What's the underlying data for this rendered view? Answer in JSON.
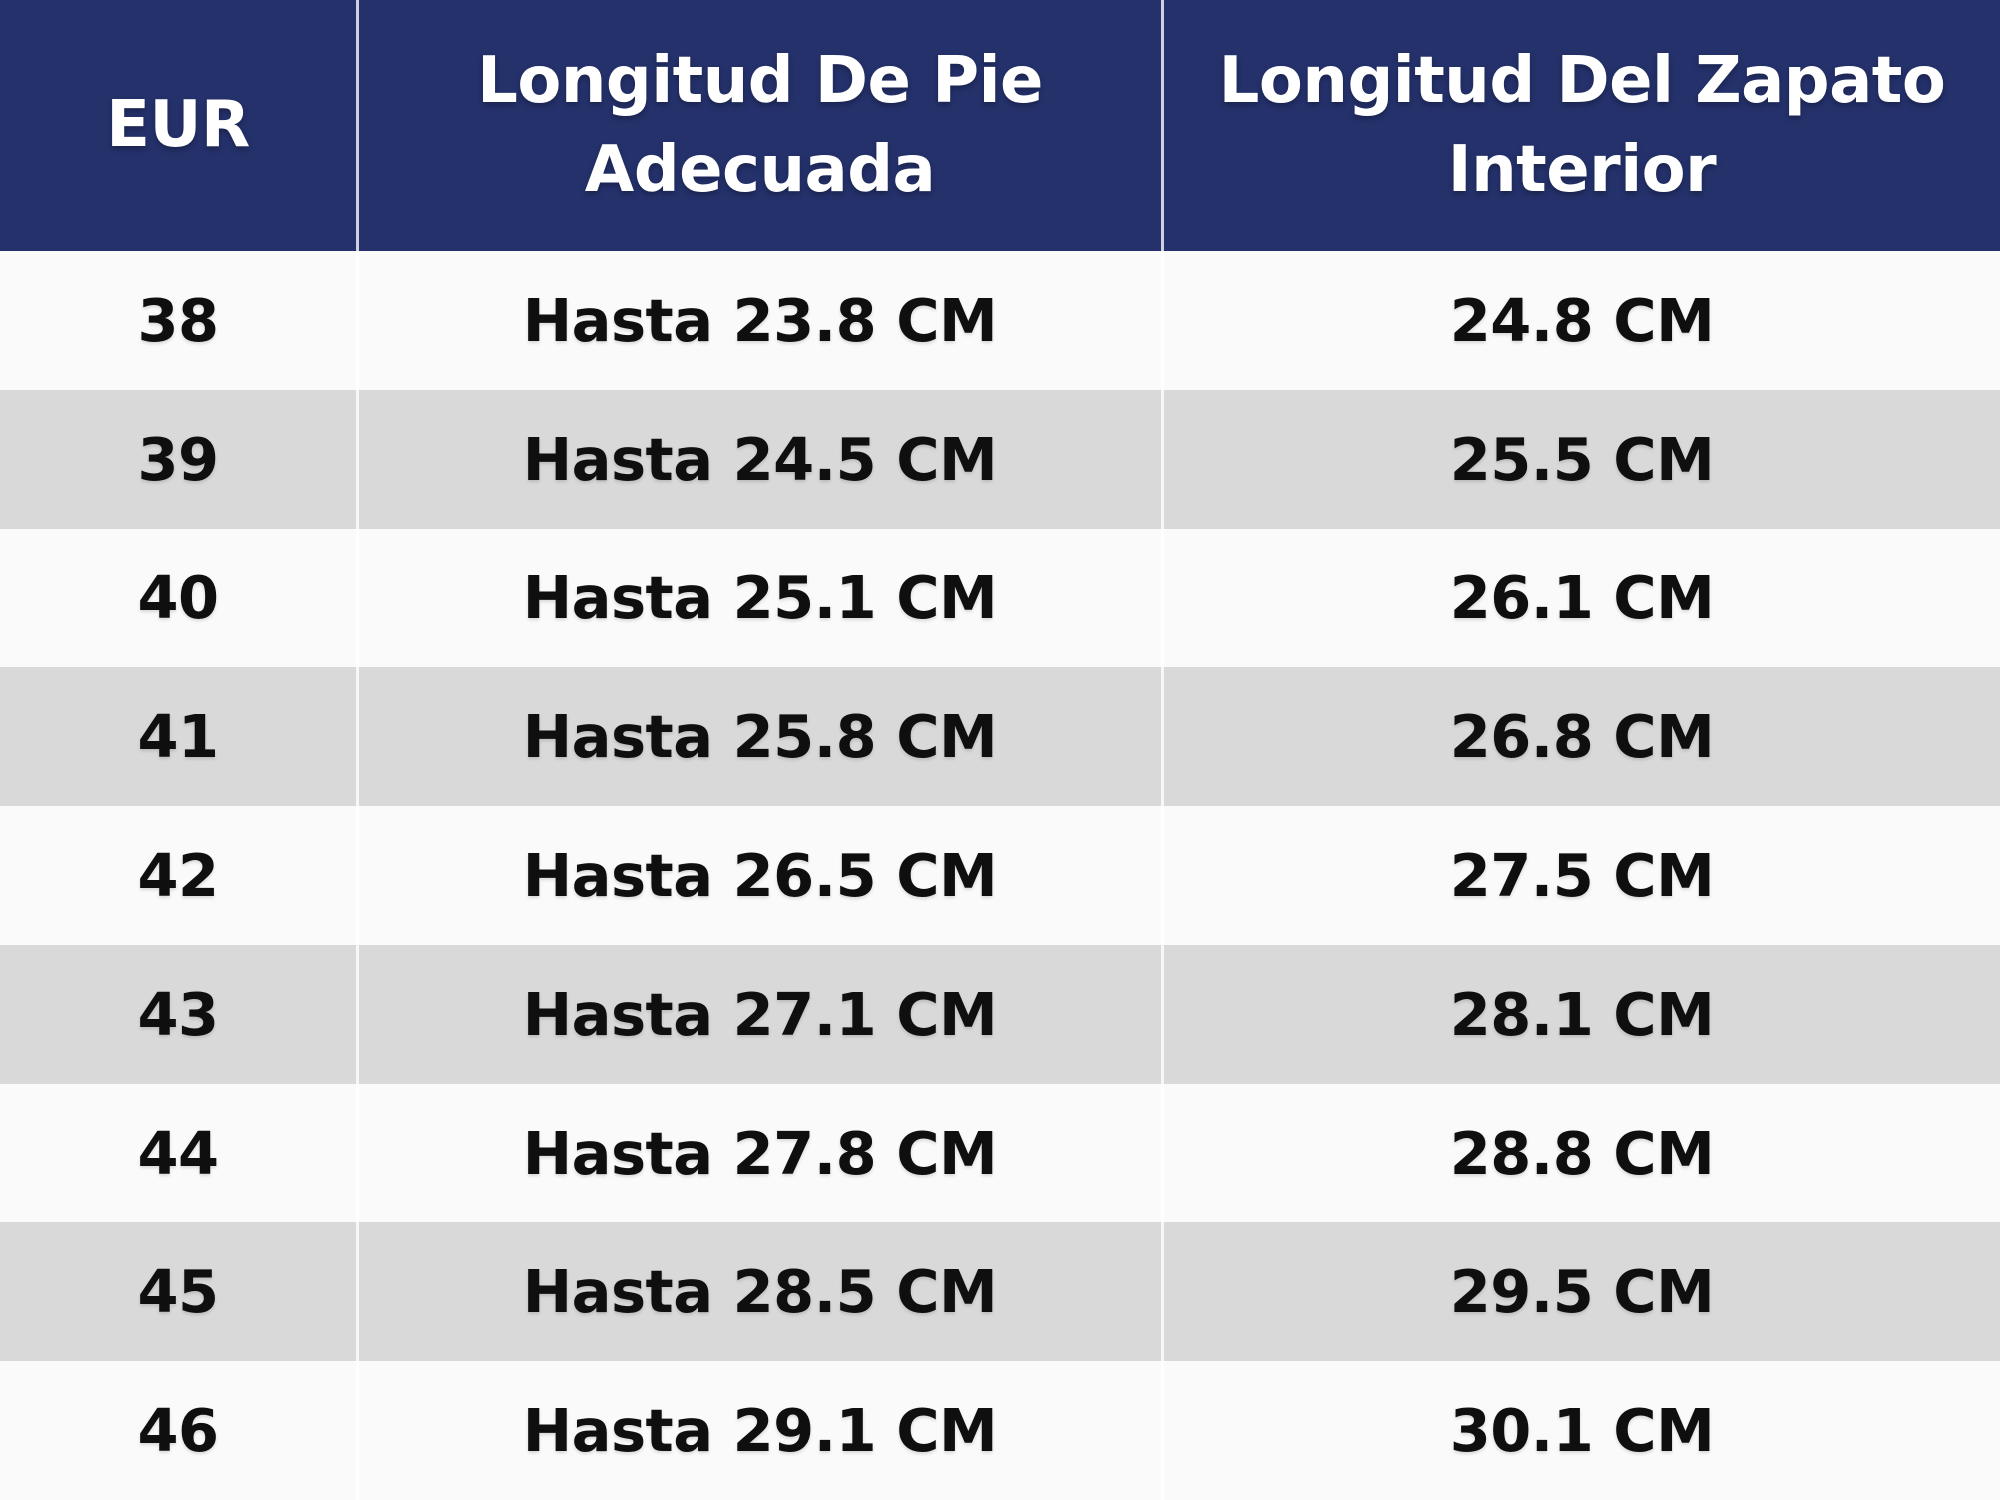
{
  "colors": {
    "header_bg": "#24316B",
    "header_text": "#FFFFFF",
    "row_light_bg": "#FAFAFA",
    "row_dark_bg": "#D9D9D9",
    "row_text": "#0F0F0F",
    "divider": "#FFFFFF"
  },
  "table": {
    "header": {
      "eur": "EUR",
      "foot_length": "Longitud De Pie\nAdecuada",
      "inner_length": "Longitud Del Zapato\nInterior"
    },
    "rows": [
      {
        "eur": "38",
        "foot": "Hasta 23.8 CM",
        "inner": "24.8 CM"
      },
      {
        "eur": "39",
        "foot": "Hasta 24.5 CM",
        "inner": "25.5 CM"
      },
      {
        "eur": "40",
        "foot": "Hasta 25.1 CM",
        "inner": "26.1 CM"
      },
      {
        "eur": "41",
        "foot": "Hasta 25.8 CM",
        "inner": "26.8 CM"
      },
      {
        "eur": "42",
        "foot": "Hasta 26.5 CM",
        "inner": "27.5 CM"
      },
      {
        "eur": "43",
        "foot": "Hasta 27.1 CM",
        "inner": "28.1 CM"
      },
      {
        "eur": "44",
        "foot": "Hasta 27.8 CM",
        "inner": "28.8 CM"
      },
      {
        "eur": "45",
        "foot": "Hasta 28.5 CM",
        "inner": "29.5 CM"
      },
      {
        "eur": "46",
        "foot": "Hasta 29.1 CM",
        "inner": "30.1 CM"
      }
    ]
  },
  "chart_data": {
    "type": "table",
    "title": "",
    "columns": [
      "EUR",
      "Longitud De Pie Adecuada",
      "Longitud Del Zapato Interior"
    ],
    "rows": [
      [
        "38",
        "Hasta 23.8 CM",
        "24.8 CM"
      ],
      [
        "39",
        "Hasta 24.5 CM",
        "25.5 CM"
      ],
      [
        "40",
        "Hasta 25.1 CM",
        "26.1 CM"
      ],
      [
        "41",
        "Hasta 25.8 CM",
        "26.8 CM"
      ],
      [
        "42",
        "Hasta 26.5 CM",
        "27.5 CM"
      ],
      [
        "43",
        "Hasta 27.1 CM",
        "28.1 CM"
      ],
      [
        "44",
        "Hasta 27.8 CM",
        "28.8 CM"
      ],
      [
        "45",
        "Hasta 28.5 CM",
        "29.5 CM"
      ],
      [
        "46",
        "Hasta 29.1 CM",
        "30.1 CM"
      ]
    ]
  }
}
